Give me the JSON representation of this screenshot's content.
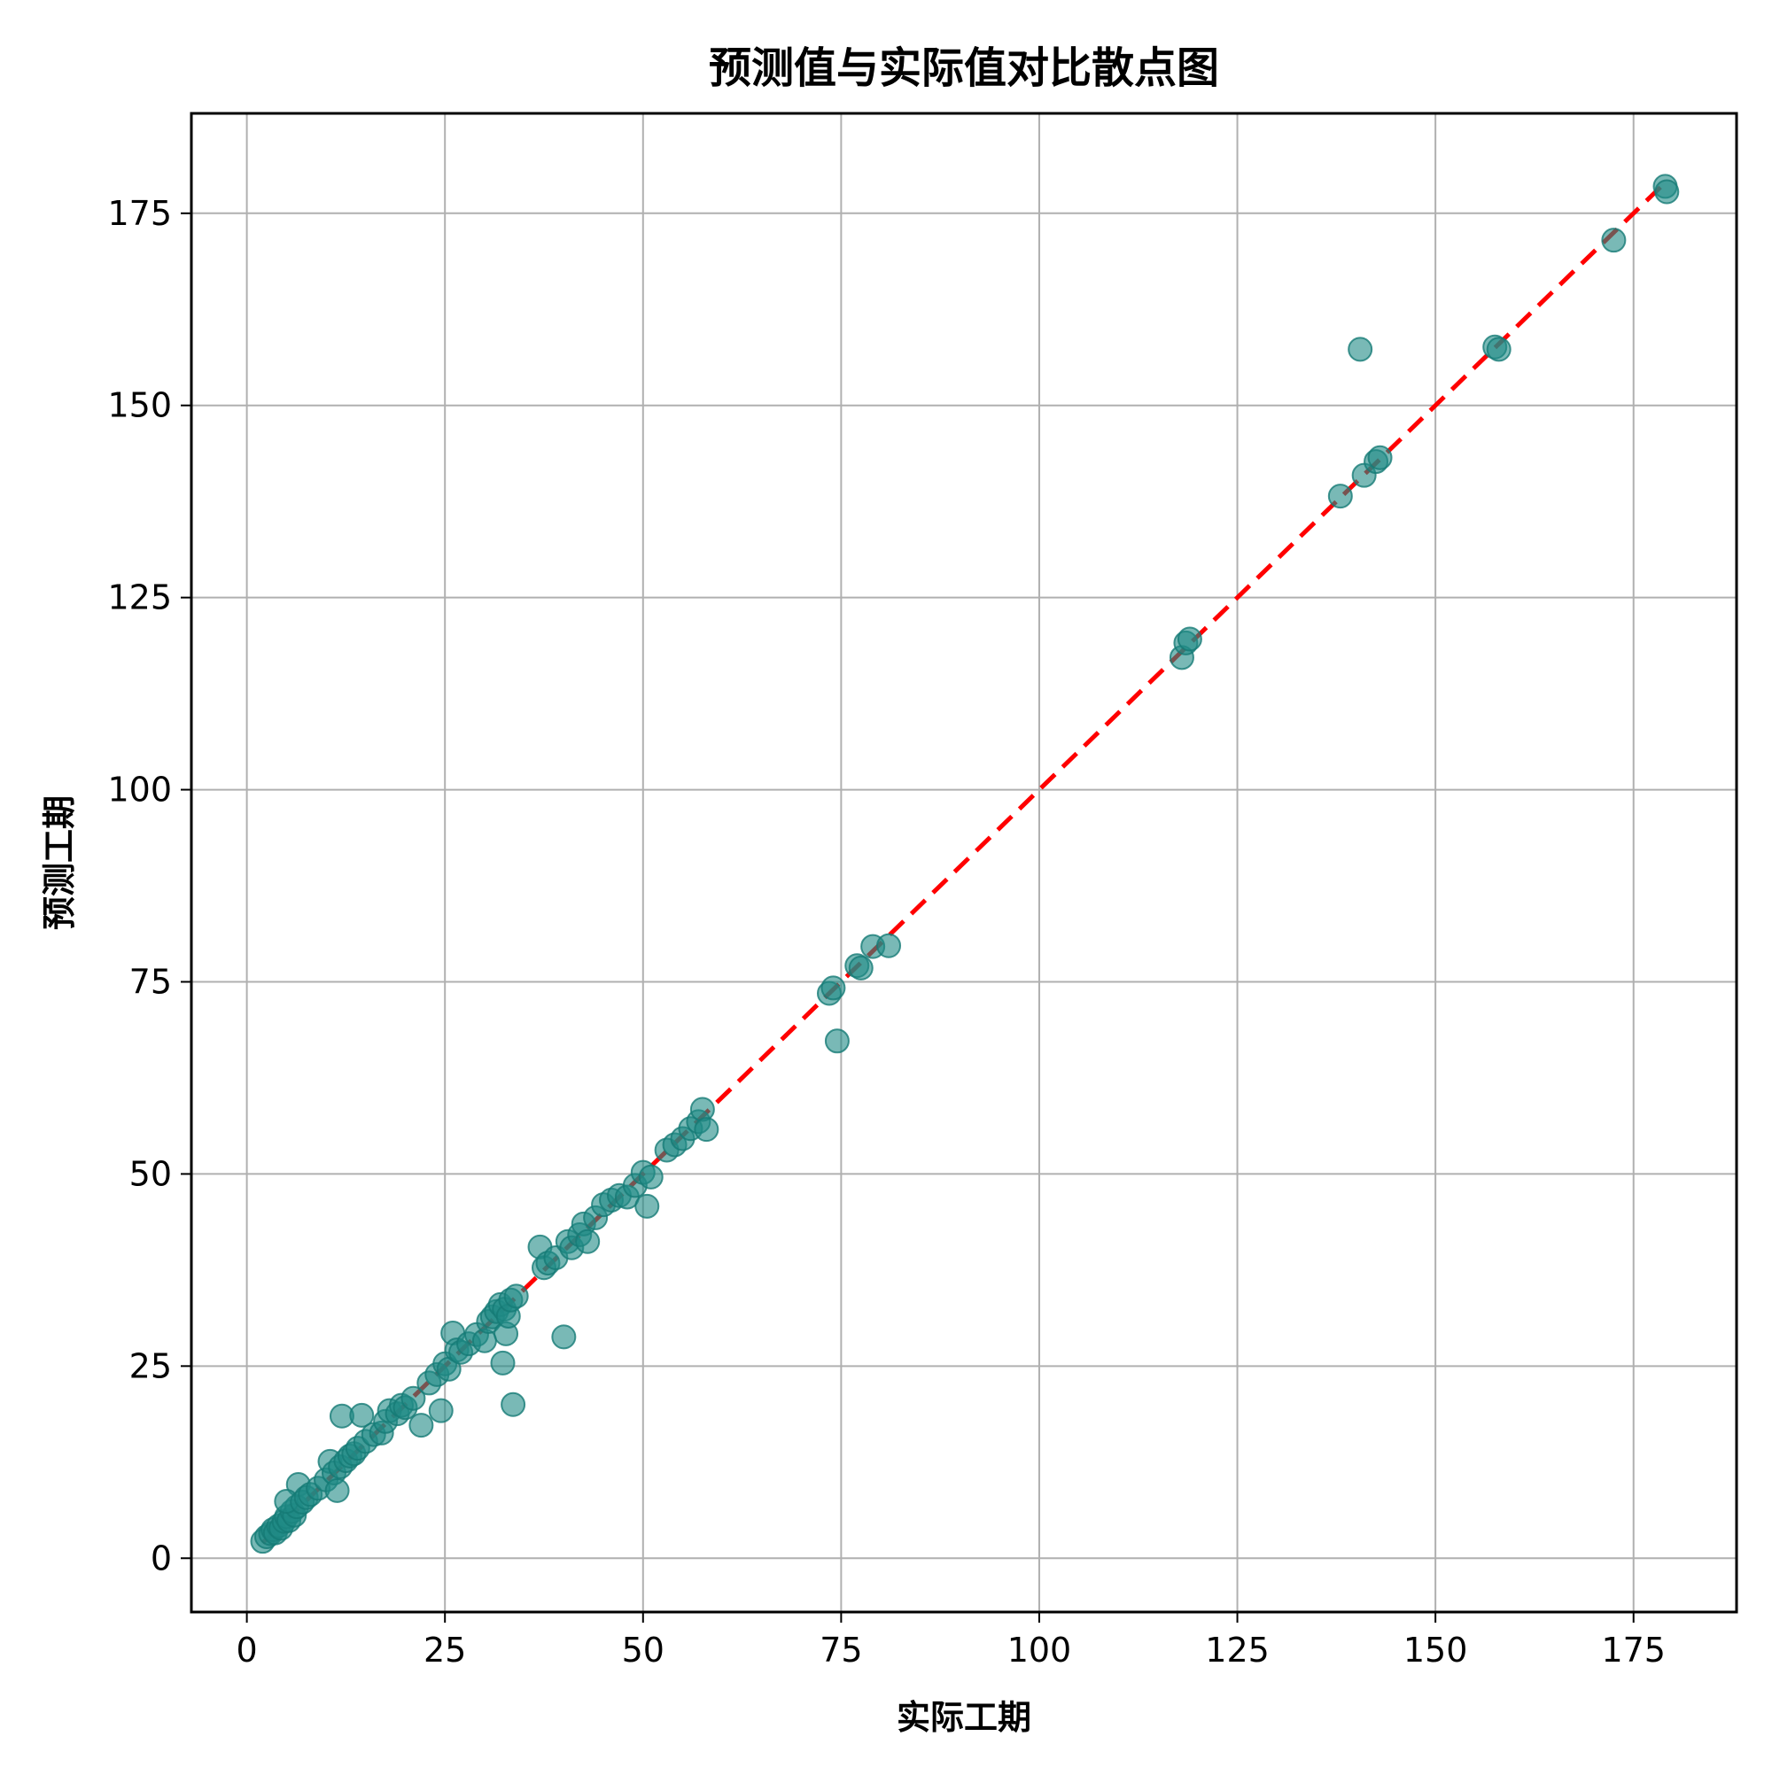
{
  "chart_data": {
    "type": "scatter",
    "title": "预测值与实际值对比散点图",
    "xlabel": "实际工期",
    "ylabel": "预测工期",
    "xlim": [
      -7,
      188
    ],
    "ylim": [
      -7,
      188
    ],
    "xticks": [
      0,
      25,
      50,
      75,
      100,
      125,
      150,
      175
    ],
    "yticks": [
      0,
      25,
      50,
      75,
      100,
      125,
      150,
      175
    ],
    "grid": true,
    "point_color": "#1f8a85",
    "reference_line": {
      "x": [
        2,
        179
      ],
      "y": [
        2,
        179
      ],
      "color": "#ff0000",
      "style": "dashed"
    },
    "points": [
      [
        2,
        2.2
      ],
      [
        2.5,
        2.8
      ],
      [
        3,
        3.2
      ],
      [
        3.3,
        3.7
      ],
      [
        3.6,
        3.3
      ],
      [
        4,
        4.2
      ],
      [
        4.3,
        3.9
      ],
      [
        4.7,
        4.8
      ],
      [
        5,
        5.4
      ],
      [
        5.3,
        4.9
      ],
      [
        5.7,
        6.1
      ],
      [
        6,
        5.6
      ],
      [
        6.3,
        6.7
      ],
      [
        6.5,
        9.6
      ],
      [
        5,
        7.4
      ],
      [
        7,
        7.3
      ],
      [
        7.5,
        7.9
      ],
      [
        8,
        8.3
      ],
      [
        9,
        9.1
      ],
      [
        10,
        10.2
      ],
      [
        10.5,
        12.6
      ],
      [
        11,
        11.1
      ],
      [
        11.4,
        8.8
      ],
      [
        11.8,
        11.9
      ],
      [
        12,
        18.5
      ],
      [
        12.5,
        12.7
      ],
      [
        13,
        13.3
      ],
      [
        13.5,
        13.6
      ],
      [
        14,
        14.3
      ],
      [
        14.5,
        18.6
      ],
      [
        15,
        15.2
      ],
      [
        16,
        16.1
      ],
      [
        17,
        16.3
      ],
      [
        17.5,
        17.8
      ],
      [
        18,
        19.2
      ],
      [
        19,
        18.8
      ],
      [
        19.5,
        19.9
      ],
      [
        20,
        19.6
      ],
      [
        21,
        20.8
      ],
      [
        22,
        17.3
      ],
      [
        23,
        22.8
      ],
      [
        24,
        23.9
      ],
      [
        24.5,
        19.2
      ],
      [
        25,
        25.3
      ],
      [
        25.5,
        24.6
      ],
      [
        26,
        29.3
      ],
      [
        26.5,
        27.1
      ],
      [
        27,
        26.8
      ],
      [
        28,
        27.9
      ],
      [
        29,
        29.1
      ],
      [
        30,
        28.3
      ],
      [
        30.5,
        30.8
      ],
      [
        31,
        31.4
      ],
      [
        31.5,
        32.1
      ],
      [
        32,
        33.0
      ],
      [
        32.3,
        25.4
      ],
      [
        32.5,
        32.4
      ],
      [
        32.7,
        29.2
      ],
      [
        33,
        31.5
      ],
      [
        33.3,
        33.6
      ],
      [
        33.6,
        20.0
      ],
      [
        34,
        34.1
      ],
      [
        37,
        40.5
      ],
      [
        37.5,
        37.8
      ],
      [
        38,
        38.4
      ],
      [
        39,
        39.1
      ],
      [
        40,
        28.8
      ],
      [
        40.5,
        41.2
      ],
      [
        41,
        40.4
      ],
      [
        42,
        42.1
      ],
      [
        42.5,
        43.5
      ],
      [
        43,
        41.2
      ],
      [
        44,
        44.3
      ],
      [
        45,
        46.0
      ],
      [
        46,
        46.6
      ],
      [
        47,
        47.2
      ],
      [
        48,
        47.0
      ],
      [
        49,
        48.5
      ],
      [
        50,
        50.2
      ],
      [
        50.5,
        45.8
      ],
      [
        51,
        49.6
      ],
      [
        53,
        53.1
      ],
      [
        54,
        53.8
      ],
      [
        55,
        54.6
      ],
      [
        56,
        55.9
      ],
      [
        57,
        56.8
      ],
      [
        57.5,
        58.4
      ],
      [
        58,
        55.8
      ],
      [
        73.5,
        73.5
      ],
      [
        74,
        74.2
      ],
      [
        74.5,
        67.3
      ],
      [
        77,
        77.1
      ],
      [
        77.5,
        76.8
      ],
      [
        79,
        79.6
      ],
      [
        81,
        79.7
      ],
      [
        118,
        117.2
      ],
      [
        118.5,
        119.1
      ],
      [
        119,
        119.6
      ],
      [
        138,
        138.2
      ],
      [
        140.5,
        157.3
      ],
      [
        141,
        140.9
      ],
      [
        142.5,
        142.7
      ],
      [
        143,
        143.2
      ],
      [
        157.5,
        157.6
      ],
      [
        158,
        157.3
      ],
      [
        172.5,
        171.5
      ],
      [
        179,
        178.5
      ],
      [
        179.2,
        177.8
      ]
    ]
  }
}
